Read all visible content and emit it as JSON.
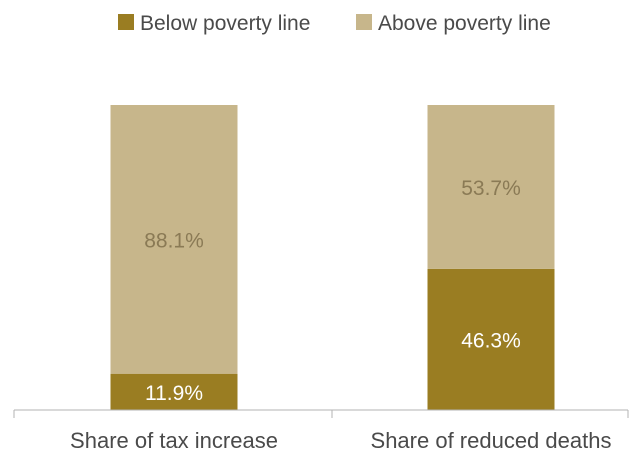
{
  "chart_data": {
    "type": "bar",
    "stacked": true,
    "categories": [
      "Share of tax increase",
      "Share of reduced deaths"
    ],
    "series": [
      {
        "name": "Below poverty line",
        "values": [
          11.9,
          46.3
        ],
        "labels": [
          "11.9%",
          "46.3%"
        ],
        "color": "#9a7d22",
        "label_color": "#ffffff"
      },
      {
        "name": "Above poverty line",
        "values": [
          88.1,
          53.7
        ],
        "labels": [
          "88.1%",
          "53.7%"
        ],
        "color": "#c7b68b",
        "label_color": "#8a7a55"
      }
    ],
    "ylim": [
      0,
      100
    ],
    "grid": false,
    "legend": "top-center",
    "axis_color": "#b3b3b3"
  }
}
